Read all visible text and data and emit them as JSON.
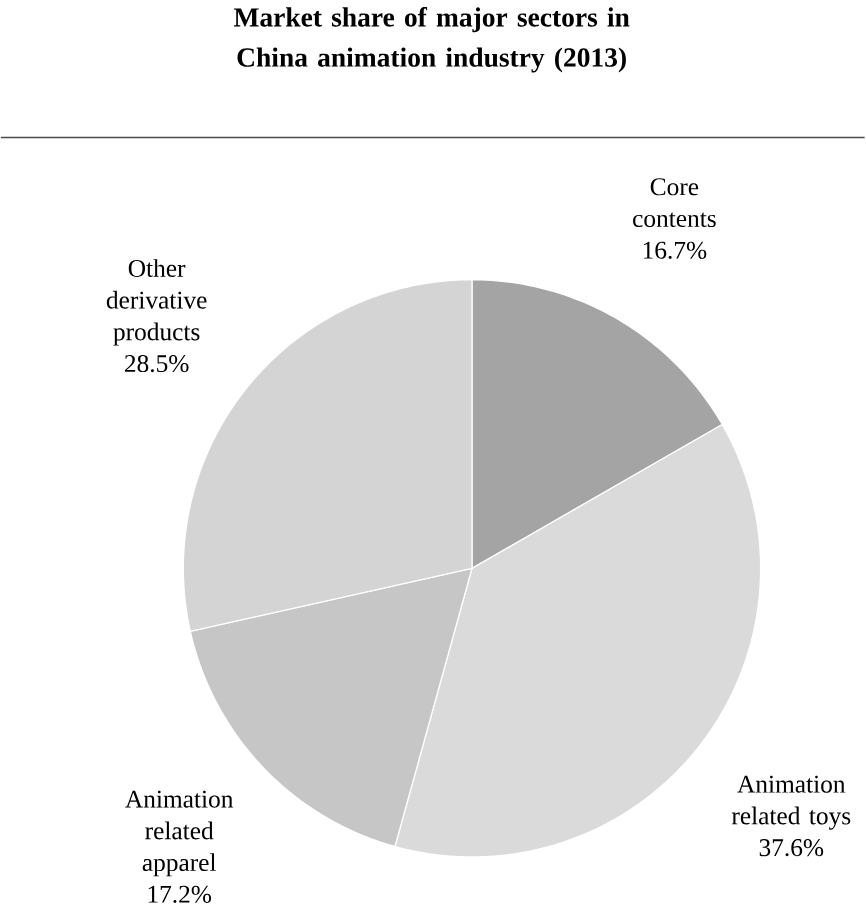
{
  "chart_data": {
    "type": "pie",
    "title": "Market share of major sectors in China animation industry (2013)",
    "categories": [
      "Core contents",
      "Animation related toys",
      "Animation related apparel",
      "Other derivative products"
    ],
    "values": [
      16.7,
      37.6,
      17.2,
      28.5
    ],
    "value_labels": [
      "16.7%",
      "37.6%",
      "17.2%",
      "28.5%"
    ],
    "colors": [
      "#a4a4a4",
      "#dadada",
      "#c6c6c6",
      "#d4d4d4"
    ]
  }
}
